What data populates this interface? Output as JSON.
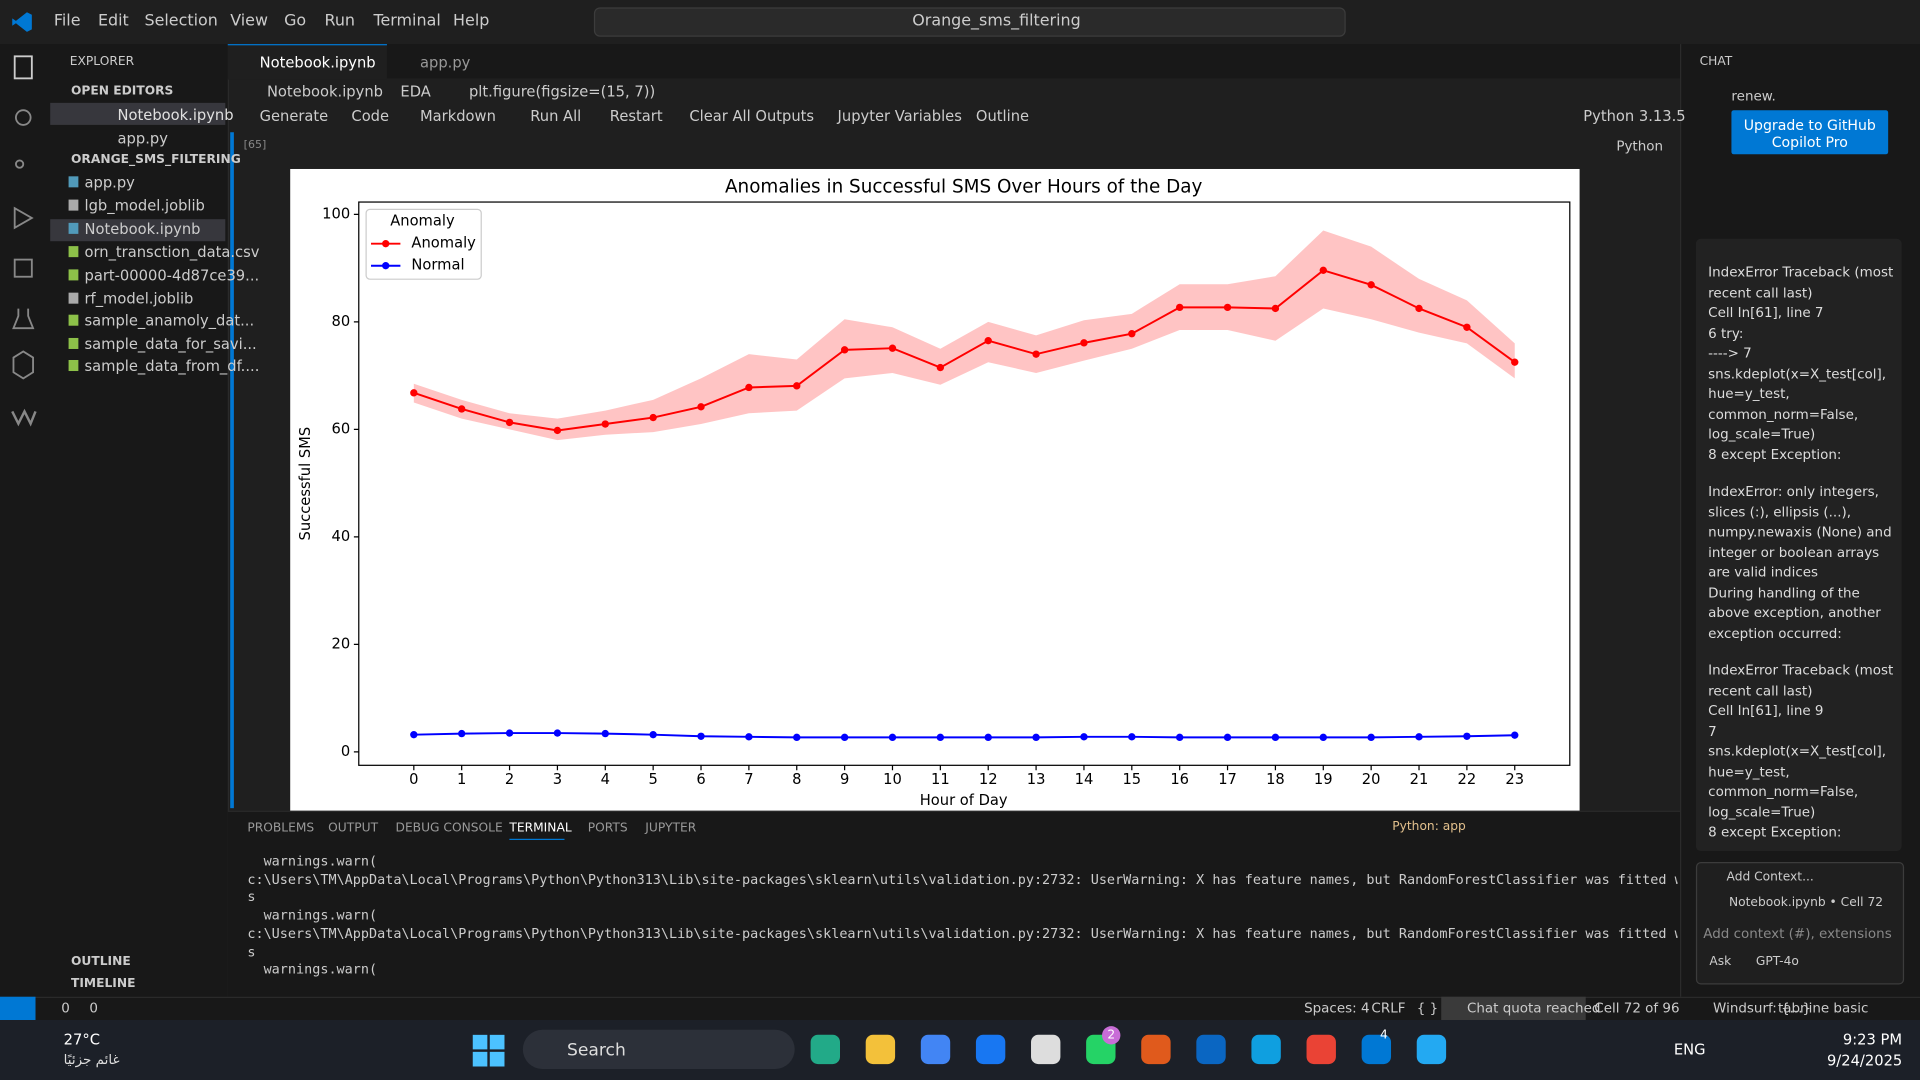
{
  "title_bar": {
    "menu": [
      "File",
      "Edit",
      "Selection",
      "View",
      "Go",
      "Run",
      "Terminal",
      "Help"
    ],
    "search": "Orange_sms_filtering"
  },
  "explorer": {
    "header": "EXPLORER",
    "open_editors": "OPEN EDITORS",
    "open_files": [
      "Notebook.ipynb",
      "app.py"
    ],
    "folder": "ORANGE_SMS_FILTERING",
    "files": [
      "app.py",
      "lgb_model.joblib",
      "Notebook.ipynb",
      "orn_transction_data.csv",
      "part-00000-4d87ce39...",
      "rf_model.joblib",
      "sample_anamoly_dat...",
      "sample_data_for_savi...",
      "sample_data_from_df...."
    ],
    "outline": "OUTLINE",
    "timeline": "TIMELINE"
  },
  "tabs": [
    "Notebook.ipynb",
    "app.py"
  ],
  "breadcrumb": [
    "Notebook.ipynb",
    "EDA",
    "plt.figure(figsize=(15, 7))"
  ],
  "toolbar": [
    "Generate",
    "Code",
    "Markdown",
    "Run All",
    "Restart",
    "Clear All Outputs",
    "Jupyter Variables",
    "Outline"
  ],
  "kernel": "Python 3.13.5",
  "cell": {
    "exec_count": "[65]",
    "language": "Python"
  },
  "chart_data": {
    "type": "line",
    "title": "Anomalies in Successful SMS Over Hours of the Day",
    "x_label": "Hour of Day",
    "y_label": "Successful SMS",
    "x": [
      0,
      1,
      2,
      3,
      4,
      5,
      6,
      7,
      8,
      9,
      10,
      11,
      12,
      13,
      14,
      15,
      16,
      17,
      18,
      19,
      20,
      21,
      22,
      23
    ],
    "series": [
      {
        "name": "Anomaly",
        "color": "#ff0000",
        "band_color": "#ffb0b0",
        "values": [
          66.8,
          63.8,
          61.3,
          59.8,
          61,
          62.2,
          64.2,
          67.8,
          68.1,
          74.8,
          75.1,
          71.5,
          76.5,
          74,
          76.1,
          77.8,
          82.7,
          82.7,
          82.5,
          89.6,
          86.9,
          82.5,
          79,
          72.5
        ],
        "lower": [
          65,
          62,
          60,
          58,
          59,
          59.5,
          61,
          63,
          63.5,
          69.5,
          70.5,
          68.3,
          72.5,
          70.5,
          72.8,
          75,
          78.5,
          78.5,
          76.5,
          82.5,
          80.5,
          78,
          76,
          69.5
        ],
        "upper": [
          68.5,
          65.5,
          63,
          62,
          63.5,
          65.5,
          69.5,
          74,
          73,
          80.5,
          79,
          75,
          80,
          77.5,
          80.3,
          81.5,
          87,
          87,
          88.5,
          97,
          94,
          88,
          84,
          76
        ]
      },
      {
        "name": "Normal",
        "color": "#0000ff",
        "values": [
          3.2,
          3.4,
          3.5,
          3.5,
          3.4,
          3.2,
          2.9,
          2.8,
          2.7,
          2.7,
          2.7,
          2.7,
          2.7,
          2.7,
          2.8,
          2.8,
          2.7,
          2.7,
          2.7,
          2.7,
          2.7,
          2.8,
          2.9,
          3.1
        ]
      }
    ],
    "legend_title": "Anomaly",
    "legend": "upper left",
    "xlim": [
      -1.15,
      24.15
    ],
    "xticks": [
      0,
      1,
      2,
      3,
      4,
      5,
      6,
      7,
      8,
      9,
      10,
      11,
      12,
      13,
      14,
      15,
      16,
      17,
      18,
      19,
      20,
      21,
      22,
      23
    ],
    "ylim": [
      -2.5,
      102.3
    ],
    "yticks": [
      0,
      20,
      40,
      60,
      80,
      100
    ]
  },
  "panel": {
    "tabs": [
      "PROBLEMS",
      "OUTPUT",
      "DEBUG CONSOLE",
      "TERMINAL",
      "PORTS",
      "JUPYTER"
    ],
    "terminal_name": "Python: app",
    "lines": [
      "  warnings.warn(",
      "c:\\Users\\TM\\AppData\\Local\\Programs\\Python\\Python313\\Lib\\site-packages\\sklearn\\utils\\validation.py:2732: UserWarning: X has feature names, but RandomForestClassifier was fitted wit",
      "s",
      "  warnings.warn(",
      "c:\\Users\\TM\\AppData\\Local\\Programs\\Python\\Python313\\Lib\\site-packages\\sklearn\\utils\\validation.py:2732: UserWarning: X has feature names, but RandomForestClassifier was fitted wit",
      "s",
      "  warnings.warn("
    ]
  },
  "chat": {
    "header": "CHAT",
    "renew": "renew.",
    "upgrade": "Upgrade to GitHub Copilot Pro",
    "messages": [
      "IndexError Traceback (most recent call last)",
      "Cell In[61], line 7",
      "6 try:",
      "----> 7",
      "sns.kdeplot(x=X_test[col], hue=y_test, common_norm=False, log_scale=True)",
      "8 except Exception:",
      "IndexError: only integers, slices (:), ellipsis (...), numpy.newaxis (None) and integer or boolean arrays are valid indices",
      "During handling of the above exception, another exception occurred:",
      "IndexError Traceback (most recent call last)",
      "Cell In[61], line 9",
      "7 sns.kdeplot(x=X_test[col], hue=y_test, common_norm=False, log_scale=True)",
      "8 except Exception:"
    ],
    "add_context": "Add Context...",
    "context_file": "Notebook.ipynb • Cell 72",
    "input_placeholder": "Add context (#), extensions (@), ...",
    "mode": "Ask",
    "model": "GPT-4o"
  },
  "status_bar": [
    "0",
    "0",
    "Spaces: 4",
    "CRLF",
    "{ }",
    "Chat quota reached",
    "Cell 72 of 96",
    "Windsurf: {...}",
    "tabnine basic"
  ],
  "taskbar": {
    "temp": "27°C",
    "weather": "غائم جزئيًا",
    "search": "Search",
    "lang": "ENG",
    "time": "9:23 PM",
    "date": "9/24/2025",
    "badges": [
      "2",
      "4"
    ]
  }
}
